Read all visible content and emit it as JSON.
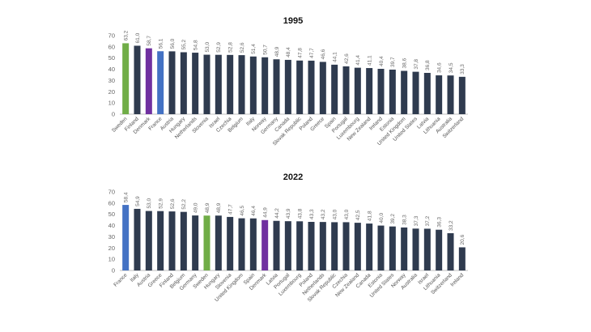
{
  "chart_data": [
    {
      "type": "bar",
      "title": "1995",
      "ylim": [
        0,
        70
      ],
      "yticks": [
        0,
        10,
        20,
        30,
        40,
        50,
        60,
        70
      ],
      "grid": false,
      "decimal_separator": ",",
      "categories": [
        "Sweden",
        "Finland",
        "Denmark",
        "France",
        "Austria",
        "Hungary",
        "Netherlands",
        "Slovenia",
        "Israel",
        "Czechia",
        "Belgium",
        "Italy",
        "Norway",
        "Germany",
        "Canada",
        "Slovak Republic",
        "Poland",
        "Greece",
        "Spain",
        "Portugal",
        "Luxembourg",
        "New Zealand",
        "Ireland",
        "Estonia",
        "United Kingdom",
        "United States",
        "Latvia",
        "Lithuania",
        "Australia",
        "Switzerland"
      ],
      "values": [
        63.2,
        61.0,
        58.7,
        56.1,
        56.0,
        55.2,
        54.8,
        53.0,
        52.9,
        52.8,
        52.6,
        51.4,
        50.7,
        48.9,
        48.4,
        47.8,
        47.7,
        46.6,
        44.1,
        42.6,
        41.4,
        41.1,
        40.4,
        39.7,
        38.6,
        37.8,
        36.8,
        34.6,
        34.5,
        33.3
      ],
      "highlight": {
        "Sweden": "#70ad47",
        "Denmark": "#7030a0",
        "France": "#4472c4"
      }
    },
    {
      "type": "bar",
      "title": "2022",
      "ylim": [
        0,
        70
      ],
      "yticks": [
        0,
        10,
        20,
        30,
        40,
        50,
        60,
        70
      ],
      "grid": false,
      "decimal_separator": ",",
      "categories": [
        "France",
        "Italy",
        "Austria",
        "Greece",
        "Finland",
        "Belgium",
        "Germany",
        "Sweden",
        "Hungary",
        "Slovenia",
        "United Kingdom",
        "Spain",
        "Denmark",
        "Latvia",
        "Portugal",
        "Luxembourg",
        "Poland",
        "Netherlands",
        "Slovak Republic",
        "Czechia",
        "New Zealand",
        "Canada",
        "Estonia",
        "United States",
        "Norway",
        "Australia",
        "Israel",
        "Lithuania",
        "Switzerland",
        "Ireland"
      ],
      "values": [
        58.4,
        54.9,
        53.0,
        52.9,
        52.6,
        52.2,
        49.0,
        48.9,
        48.9,
        47.7,
        46.5,
        46.4,
        44.9,
        44.2,
        43.9,
        43.8,
        43.3,
        43.2,
        43.0,
        43.0,
        42.5,
        41.8,
        40.0,
        39.2,
        38.3,
        37.3,
        37.2,
        36.3,
        33.2,
        20.6
      ],
      "highlight": {
        "France": "#4472c4",
        "Sweden": "#70ad47",
        "Denmark": "#7030a0"
      }
    }
  ],
  "colors": {
    "default_bar": "#2f3b4f",
    "axis": "#bfbfbf"
  }
}
